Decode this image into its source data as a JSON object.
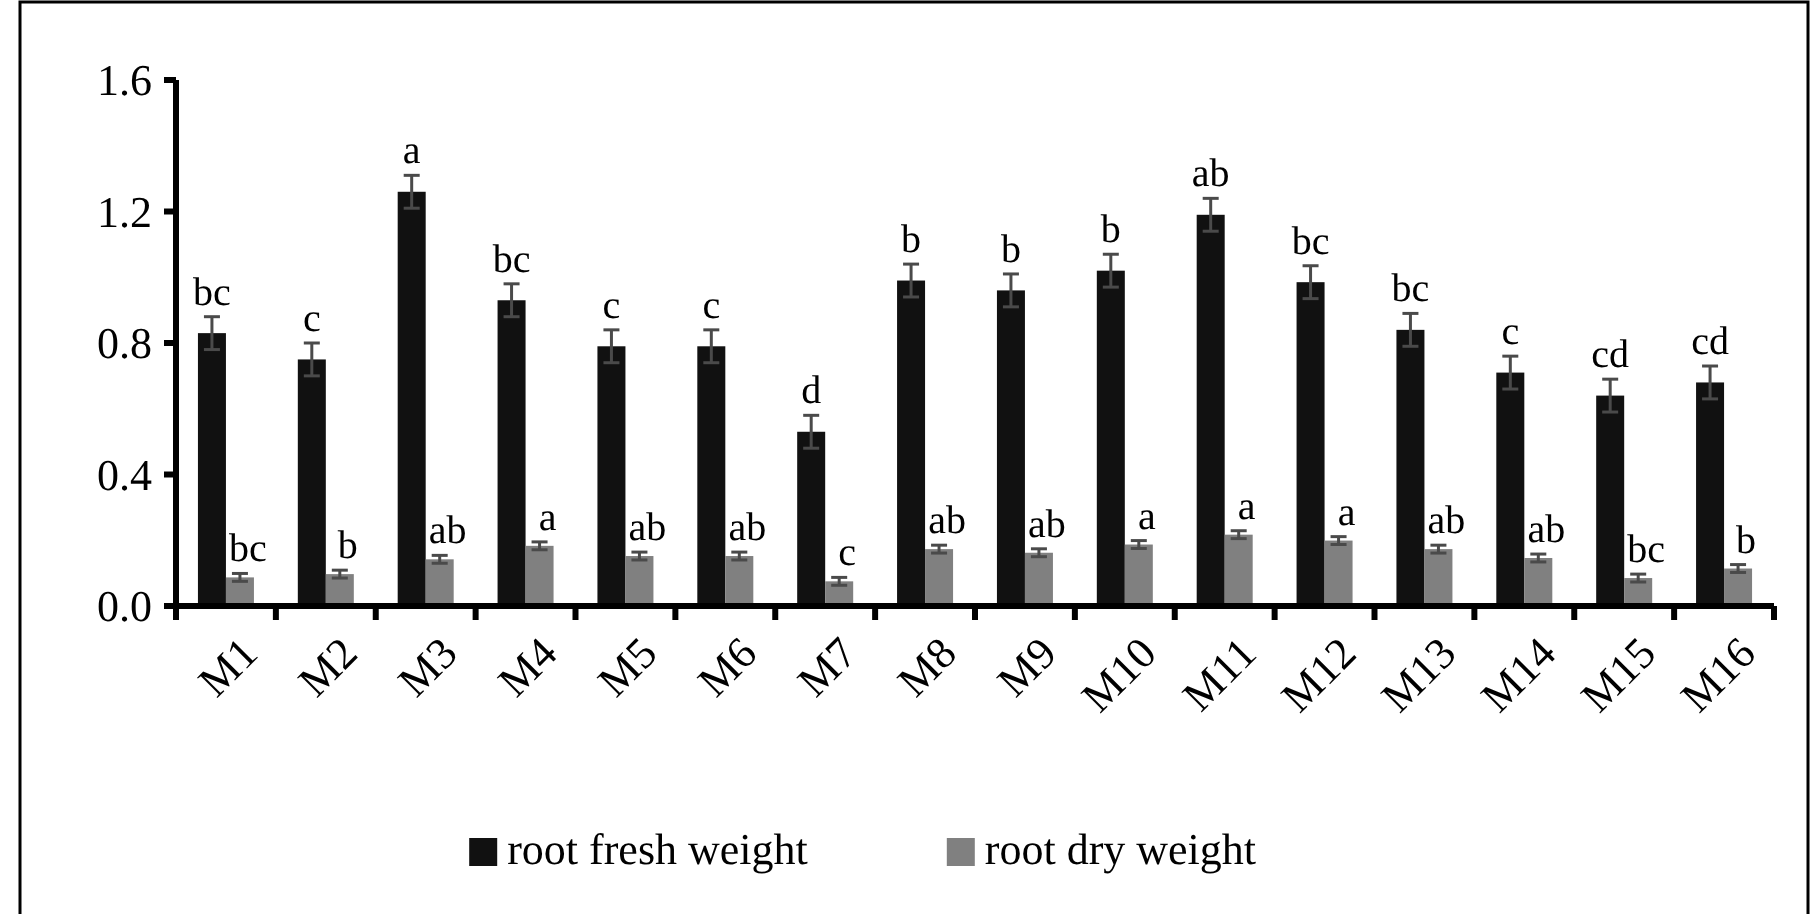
{
  "chart_data": {
    "type": "bar",
    "categories": [
      "M1",
      "M2",
      "M3",
      "M4",
      "M5",
      "M6",
      "M7",
      "M8",
      "M9",
      "M10",
      "M11",
      "M12",
      "M13",
      "M14",
      "M15",
      "M16"
    ],
    "ylim": [
      0,
      1.6
    ],
    "yticks": [
      {
        "value": 0,
        "label": "0.0"
      },
      {
        "value": 0.4,
        "label": "0.4"
      },
      {
        "value": 0.8,
        "label": "0.8"
      },
      {
        "value": 1.2,
        "label": "1.2"
      },
      {
        "value": 1.6,
        "label": "1.6"
      }
    ],
    "grid": false,
    "legend": "bottom",
    "series": [
      {
        "name": "root fresh weight",
        "color": "#111111",
        "values": [
          0.83,
          0.75,
          1.26,
          0.93,
          0.79,
          0.79,
          0.53,
          0.99,
          0.96,
          1.02,
          1.19,
          0.985,
          0.84,
          0.71,
          0.64,
          0.68
        ],
        "errors": [
          0.05,
          0.05,
          0.05,
          0.05,
          0.05,
          0.05,
          0.05,
          0.05,
          0.05,
          0.05,
          0.05,
          0.05,
          0.05,
          0.05,
          0.05,
          0.05
        ],
        "value_labels": [
          "bc",
          "c",
          "a",
          "bc",
          "c",
          "c",
          "d",
          "b",
          "b",
          "b",
          "ab",
          "bc",
          "bc",
          "c",
          "cd",
          "cd"
        ]
      },
      {
        "name": "root dry weight",
        "color": "#808080",
        "values": [
          0.087,
          0.097,
          0.142,
          0.183,
          0.152,
          0.152,
          0.075,
          0.173,
          0.162,
          0.187,
          0.217,
          0.199,
          0.173,
          0.146,
          0.085,
          0.114
        ],
        "errors": [
          0.012,
          0.012,
          0.012,
          0.012,
          0.012,
          0.012,
          0.012,
          0.012,
          0.012,
          0.012,
          0.012,
          0.012,
          0.012,
          0.012,
          0.012,
          0.012
        ],
        "value_labels": [
          "bc",
          "b",
          "ab",
          "a",
          "ab",
          "ab",
          "c",
          "ab",
          "ab",
          "a",
          "a",
          "a",
          "ab",
          "ab",
          "bc",
          "b"
        ]
      }
    ]
  }
}
